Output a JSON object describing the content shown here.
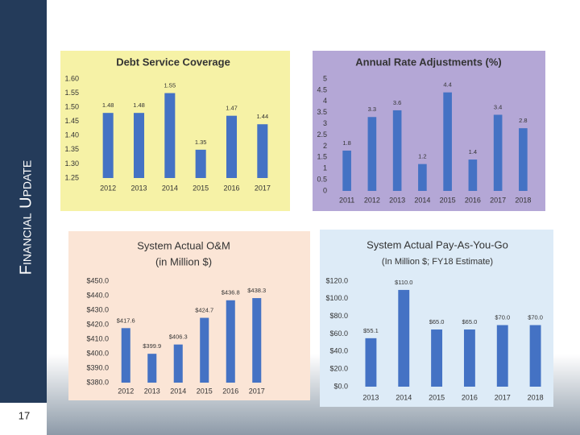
{
  "slide": {
    "title": "Financial Update",
    "page": "17"
  },
  "chart_data": [
    {
      "type": "bar",
      "title": "Debt Service Coverage",
      "color": "#4472c4",
      "categories": [
        "2012",
        "2013",
        "2014",
        "2015",
        "2016",
        "2017"
      ],
      "values": [
        1.48,
        1.48,
        1.55,
        1.35,
        1.47,
        1.44
      ],
      "ylim": [
        1.25,
        1.6
      ],
      "yticks": [
        1.25,
        {
          "value": 1.3,
          "label": "1.30"
        },
        1.35,
        {
          "value": 1.4,
          "label": "1.40"
        },
        1.45,
        {
          "value": 1.5,
          "label": "1.50"
        },
        1.55,
        {
          "value": 1.6,
          "label": "1.60"
        }
      ]
    },
    {
      "type": "bar",
      "title": "Annual Rate Adjustments (%)",
      "color": "#4472c4",
      "categories": [
        "2011",
        "2012",
        "2013",
        "2014",
        "2015",
        "2016",
        "2017",
        "2018"
      ],
      "values": [
        1.8,
        3.3,
        3.6,
        1.2,
        4.4,
        1.4,
        3.4,
        2.8
      ],
      "ylim": [
        0,
        5
      ],
      "yticks": [
        0,
        0.5,
        1,
        1.5,
        2,
        2.5,
        3,
        3.5,
        4,
        4.5,
        5
      ]
    },
    {
      "type": "bar",
      "title": "System Actual O&M",
      "subtitle": "(in Million $)",
      "color": "#4472c4",
      "categories": [
        "2012",
        "2013",
        "2014",
        "2015",
        "2016",
        "2017"
      ],
      "values": [
        417.6,
        399.9,
        406.3,
        424.7,
        436.8,
        438.3
      ],
      "value_labels": [
        "$417.6",
        "$399.9",
        "$406.3",
        "$424.7",
        "$436.8",
        "$438.3"
      ],
      "ylim": [
        380,
        450
      ],
      "yticks": [
        {
          "value": 380,
          "label": "$380.0"
        },
        {
          "value": 390,
          "label": "$390.0"
        },
        {
          "value": 400,
          "label": "$400.0"
        },
        {
          "value": 410,
          "label": "$410.0"
        },
        {
          "value": 420,
          "label": "$420.0"
        },
        {
          "value": 430,
          "label": "$430.0"
        },
        {
          "value": 440,
          "label": "$440.0"
        },
        {
          "value": 450,
          "label": "$450.0"
        }
      ]
    },
    {
      "type": "bar",
      "title": "System Actual Pay-As-You-Go",
      "subtitle": "(In Million $; FY18 Estimate)",
      "color": "#4472c4",
      "categories": [
        "2013",
        "2014",
        "2015",
        "2016",
        "2017",
        "2018"
      ],
      "values": [
        55.1,
        110,
        65,
        65,
        70,
        70
      ],
      "value_labels": [
        "$55.1",
        "$110.0",
        "$65.0",
        "$65.0",
        "$70.0",
        "$70.0"
      ],
      "ylim": [
        0,
        120
      ],
      "yticks": [
        {
          "value": 0,
          "label": "$0.0"
        },
        {
          "value": 20,
          "label": "$20.0"
        },
        {
          "value": 40,
          "label": "$40.0"
        },
        {
          "value": 60,
          "label": "$60.0"
        },
        {
          "value": 80,
          "label": "$80.0"
        },
        {
          "value": 100,
          "label": "$100.0"
        },
        {
          "value": 120,
          "label": "$120.0"
        }
      ]
    }
  ]
}
